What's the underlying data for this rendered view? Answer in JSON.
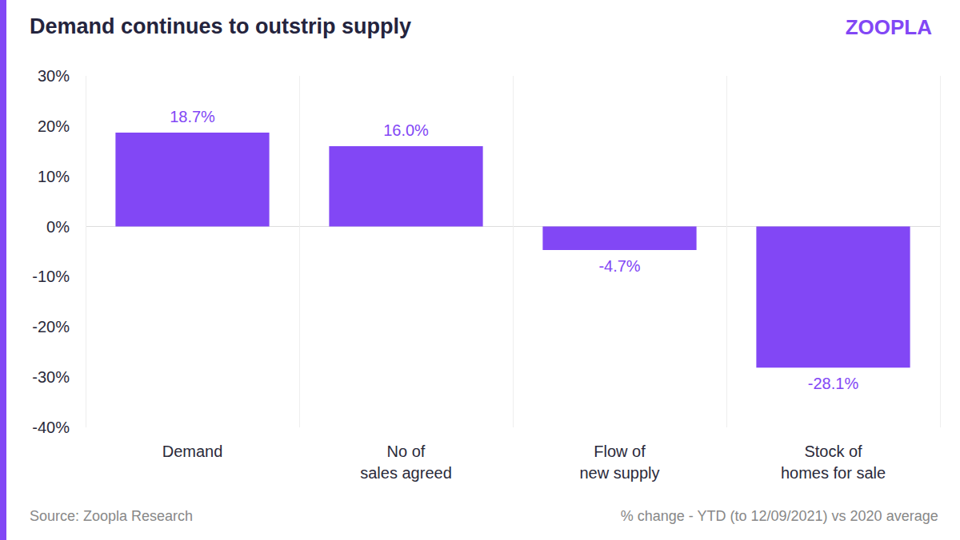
{
  "chart_data": {
    "type": "bar",
    "title": "Demand continues to outstrip supply",
    "logo": "ZOOPLA",
    "source": "Source: Zoopla Research",
    "note": "% change - YTD (to 12/09/2021) vs 2020 average",
    "categories": [
      "Demand",
      "No of\nsales agreed",
      "Flow of\nnew supply",
      "Stock of\nhomes for sale"
    ],
    "values": [
      18.7,
      16.0,
      -4.7,
      -28.1
    ],
    "value_labels": [
      "18.7%",
      "16.0%",
      "-4.7%",
      "-28.1%"
    ],
    "color": "#8247f5",
    "ylim": [
      -40,
      30
    ],
    "yticks": [
      {
        "value": -40,
        "label": "-40%"
      },
      {
        "value": -30,
        "label": "-30%"
      },
      {
        "value": -20,
        "label": "-20%"
      },
      {
        "value": -10,
        "label": "-10%"
      },
      {
        "value": 0,
        "label": "0%"
      },
      {
        "value": 10,
        "label": "10%"
      },
      {
        "value": 20,
        "label": "20%"
      },
      {
        "value": 30,
        "label": "30%"
      }
    ],
    "grid": true,
    "data_labels": true
  }
}
